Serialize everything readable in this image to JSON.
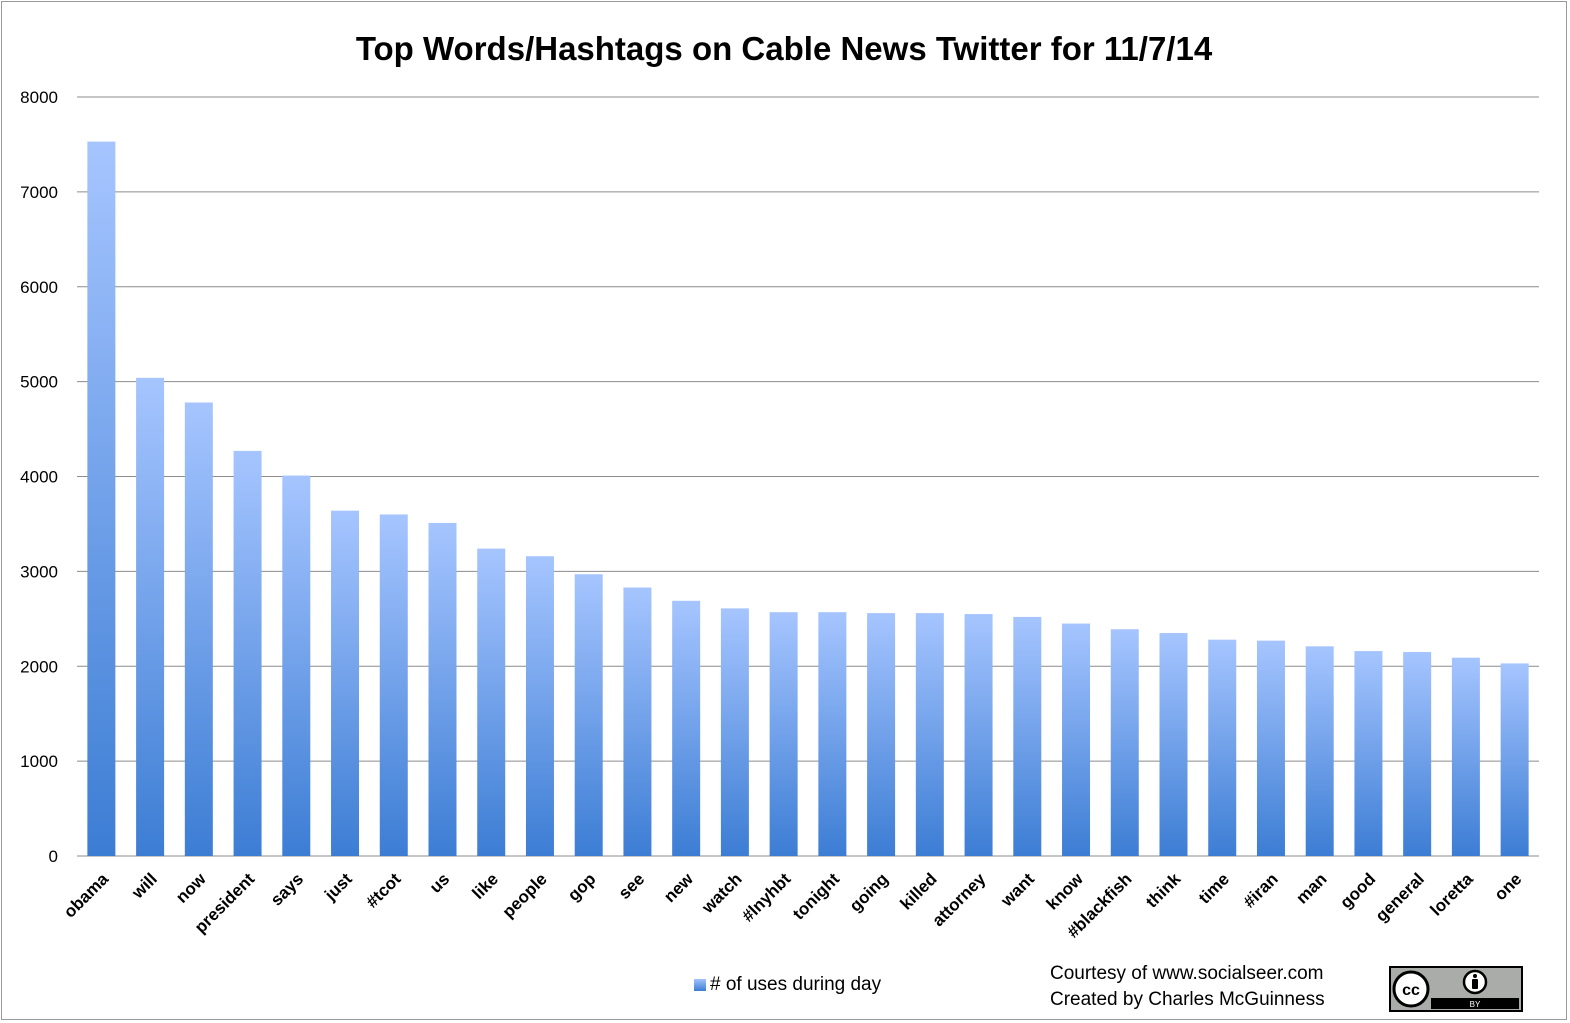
{
  "chart_data": {
    "type": "bar",
    "title": "Top Words/Hashtags on Cable News Twitter for 11/7/14",
    "categories": [
      "obama",
      "will",
      "now",
      "president",
      "says",
      "just",
      "#tcot",
      "us",
      "like",
      "people",
      "gop",
      "see",
      "new",
      "watch",
      "#lnyhbt",
      "tonight",
      "going",
      "killed",
      "attorney",
      "want",
      "know",
      "#blackfish",
      "think",
      "time",
      "#iran",
      "man",
      "good",
      "general",
      "loretta",
      "one"
    ],
    "series": [
      {
        "name": "# of uses during day",
        "values": [
          7530,
          5040,
          4780,
          4270,
          4010,
          3640,
          3600,
          3510,
          3240,
          3160,
          2970,
          2830,
          2690,
          2610,
          2570,
          2570,
          2560,
          2560,
          2550,
          2520,
          2450,
          2390,
          2350,
          2280,
          2270,
          2210,
          2160,
          2150,
          2090,
          2030
        ]
      }
    ],
    "yticks": [
      "0",
      "1000",
      "2000",
      "3000",
      "4000",
      "5000",
      "6000",
      "7000",
      "8000"
    ],
    "ylim": [
      0,
      8000
    ],
    "grid": true,
    "legend_position": "bottom",
    "colors": {
      "bar_top": "#a6c5ff",
      "bar_bottom": "#3c7dd4",
      "grid": "#8c8c8c"
    }
  },
  "footer": {
    "credit_line1": "Courtesy of www.socialseer.com",
    "credit_line2": "Created by Charles McGuinness",
    "license_badge_text": "BY"
  }
}
